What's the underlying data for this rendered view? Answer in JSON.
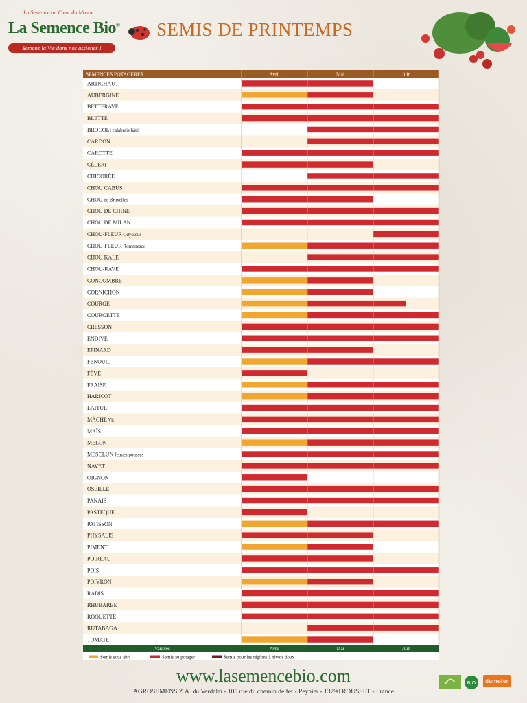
{
  "brand": {
    "tagline": "La Semence au Cœur du Monde",
    "name": "La Semence Bio",
    "registered": "®",
    "slogan": "Semons la Vie dans nos assiettes !"
  },
  "title": "SEMIS DE PRINTEMPS",
  "footer": {
    "url": "www.lasemencebio.com",
    "address": "AGROSEMENS Z.A. du Verdalaï - 105 rue du chemin de fer - Peynier - 13790 ROUSSET - France",
    "cert_labels": [
      "",
      "BIO",
      "demeter"
    ]
  },
  "colors": {
    "brand_green": "#2a6a2f",
    "header_brown": "#9a5a24",
    "footer_green": "#1f5d2b",
    "abri": "#f0a630",
    "potager": "#cf2a30",
    "hivers_doux": "#7e1a1f",
    "row_light": "#fbf1de",
    "row_white": "#ffffff"
  },
  "chart_data": {
    "type": "gantt",
    "title": "SEMIS DE PRINTEMPS",
    "header_label": "SEMENCES POTAGERES",
    "footer_label": "Variétés",
    "months": [
      "Avril",
      "Mai",
      "Juin"
    ],
    "legend": [
      {
        "key": "abri",
        "label": "Semis sous abri",
        "color": "#f0a630"
      },
      {
        "key": "potager",
        "label": "Semis au potager",
        "color": "#cf2a30"
      },
      {
        "key": "hivers_doux",
        "label": "Semis pour les régions à hivers doux",
        "color": "#7e1a1f"
      }
    ],
    "x_units": "months (0 = début avril, 3 = fin juin)",
    "rows": [
      {
        "name": "ARTICHAUT",
        "bars": [
          {
            "type": "potager",
            "start": 0,
            "end": 2
          }
        ]
      },
      {
        "name": "AUBERGINE",
        "bars": [
          {
            "type": "abri",
            "start": 0,
            "end": 1
          },
          {
            "type": "potager",
            "start": 1,
            "end": 2
          }
        ]
      },
      {
        "name": "BETTERAVE",
        "bars": [
          {
            "type": "potager",
            "start": 0,
            "end": 3
          }
        ]
      },
      {
        "name": "BLETTE",
        "bars": [
          {
            "type": "potager",
            "start": 0,
            "end": 3
          }
        ]
      },
      {
        "name": "BROCOLI",
        "note": "calabrais hâtif",
        "bars": [
          {
            "type": "potager",
            "start": 1,
            "end": 3
          }
        ]
      },
      {
        "name": "CARDON",
        "bars": [
          {
            "type": "potager",
            "start": 1,
            "end": 3
          }
        ]
      },
      {
        "name": "CAROTTE",
        "bars": [
          {
            "type": "potager",
            "start": 0,
            "end": 3
          }
        ]
      },
      {
        "name": "CÉLERI",
        "bars": [
          {
            "type": "potager",
            "start": 0,
            "end": 2
          }
        ]
      },
      {
        "name": "CHICORÉE",
        "bars": [
          {
            "type": "potager",
            "start": 1,
            "end": 3
          }
        ]
      },
      {
        "name": "CHOU CABUS",
        "bars": [
          {
            "type": "potager",
            "start": 0,
            "end": 3
          }
        ]
      },
      {
        "name": "CHOU",
        "note": "de Bruxelles",
        "bars": [
          {
            "type": "potager",
            "start": 0,
            "end": 2
          }
        ]
      },
      {
        "name": "CHOU DE CHINE",
        "bars": [
          {
            "type": "potager",
            "start": 0,
            "end": 3
          }
        ]
      },
      {
        "name": "CHOU DE MILAN",
        "bars": [
          {
            "type": "potager",
            "start": 0,
            "end": 3
          }
        ]
      },
      {
        "name": "CHOU-FLEUR",
        "note": "Odysseus",
        "bars": [
          {
            "type": "potager",
            "start": 2,
            "end": 3
          }
        ]
      },
      {
        "name": "CHOU-FLEUR",
        "note": "Romanesco",
        "bars": [
          {
            "type": "abri",
            "start": 0,
            "end": 1
          },
          {
            "type": "potager",
            "start": 1,
            "end": 3
          }
        ]
      },
      {
        "name": "CHOU KALE",
        "bars": [
          {
            "type": "potager",
            "start": 1,
            "end": 3
          }
        ]
      },
      {
        "name": "CHOU-RAVE",
        "bars": [
          {
            "type": "potager",
            "start": 0,
            "end": 3
          }
        ]
      },
      {
        "name": "CONCOMBRE",
        "bars": [
          {
            "type": "abri",
            "start": 0,
            "end": 1
          },
          {
            "type": "potager",
            "start": 1,
            "end": 2
          }
        ]
      },
      {
        "name": "CORNICHON",
        "bars": [
          {
            "type": "abri",
            "start": 0,
            "end": 1
          },
          {
            "type": "potager",
            "start": 1,
            "end": 2
          }
        ]
      },
      {
        "name": "COURGE",
        "bars": [
          {
            "type": "abri",
            "start": 0,
            "end": 1
          },
          {
            "type": "potager",
            "start": 1,
            "end": 2.5
          }
        ]
      },
      {
        "name": "COURGETTE",
        "bars": [
          {
            "type": "abri",
            "start": 0,
            "end": 1
          },
          {
            "type": "potager",
            "start": 1,
            "end": 3
          }
        ]
      },
      {
        "name": "CRESSON",
        "bars": [
          {
            "type": "potager",
            "start": 0,
            "end": 3
          }
        ]
      },
      {
        "name": "ENDIVE",
        "bars": [
          {
            "type": "potager",
            "start": 0,
            "end": 3
          }
        ]
      },
      {
        "name": "EPINARD",
        "bars": [
          {
            "type": "potager",
            "start": 0,
            "end": 2
          }
        ]
      },
      {
        "name": "FENOUIL",
        "bars": [
          {
            "type": "abri",
            "start": 0,
            "end": 1
          },
          {
            "type": "potager",
            "start": 1,
            "end": 3
          }
        ]
      },
      {
        "name": "FÈVE",
        "bars": [
          {
            "type": "potager",
            "start": 0,
            "end": 1
          }
        ]
      },
      {
        "name": "FRAISE",
        "bars": [
          {
            "type": "abri",
            "start": 0,
            "end": 1
          },
          {
            "type": "potager",
            "start": 1,
            "end": 3
          }
        ]
      },
      {
        "name": "HARICOT",
        "bars": [
          {
            "type": "abri",
            "start": 0,
            "end": 1
          },
          {
            "type": "potager",
            "start": 1,
            "end": 3
          }
        ]
      },
      {
        "name": "LAITUE",
        "bars": [
          {
            "type": "potager",
            "start": 0,
            "end": 3
          }
        ]
      },
      {
        "name": "MÂCHE",
        "note": "Vit",
        "bars": [
          {
            "type": "potager",
            "start": 0,
            "end": 3
          }
        ]
      },
      {
        "name": "MAÏS",
        "bars": [
          {
            "type": "potager",
            "start": 0,
            "end": 3
          }
        ]
      },
      {
        "name": "MELON",
        "bars": [
          {
            "type": "abri",
            "start": 0,
            "end": 1
          },
          {
            "type": "potager",
            "start": 1,
            "end": 3
          }
        ]
      },
      {
        "name": "MESCLUN",
        "note": "Jeunes pousses",
        "bars": [
          {
            "type": "potager",
            "start": 0,
            "end": 3
          }
        ]
      },
      {
        "name": "NAVET",
        "bars": [
          {
            "type": "potager",
            "start": 0,
            "end": 3
          }
        ]
      },
      {
        "name": "OIGNON",
        "bars": [
          {
            "type": "potager",
            "start": 0,
            "end": 1
          }
        ]
      },
      {
        "name": "OSEILLE",
        "bars": [
          {
            "type": "potager",
            "start": 0,
            "end": 3
          }
        ]
      },
      {
        "name": "PANAIS",
        "bars": [
          {
            "type": "potager",
            "start": 0,
            "end": 3
          }
        ]
      },
      {
        "name": "PASTEQUE",
        "bars": [
          {
            "type": "potager",
            "start": 0,
            "end": 1
          }
        ]
      },
      {
        "name": "PATISSON",
        "bars": [
          {
            "type": "abri",
            "start": 0,
            "end": 1
          },
          {
            "type": "potager",
            "start": 1,
            "end": 3
          }
        ]
      },
      {
        "name": "PHYSALIS",
        "bars": [
          {
            "type": "potager",
            "start": 0,
            "end": 2
          }
        ]
      },
      {
        "name": "PIMENT",
        "bars": [
          {
            "type": "abri",
            "start": 0,
            "end": 1
          },
          {
            "type": "potager",
            "start": 1,
            "end": 2
          }
        ]
      },
      {
        "name": "POIREAU",
        "bars": [
          {
            "type": "potager",
            "start": 0,
            "end": 2
          }
        ]
      },
      {
        "name": "POIS",
        "bars": [
          {
            "type": "potager",
            "start": 0,
            "end": 3
          }
        ]
      },
      {
        "name": "POIVRON",
        "bars": [
          {
            "type": "abri",
            "start": 0,
            "end": 1
          },
          {
            "type": "potager",
            "start": 1,
            "end": 2
          }
        ]
      },
      {
        "name": "RADIS",
        "bars": [
          {
            "type": "potager",
            "start": 0,
            "end": 3
          }
        ]
      },
      {
        "name": "RHUBARBE",
        "bars": [
          {
            "type": "potager",
            "start": 0,
            "end": 3
          }
        ]
      },
      {
        "name": "ROQUETTE",
        "bars": [
          {
            "type": "potager",
            "start": 0,
            "end": 3
          }
        ]
      },
      {
        "name": "RUTABAGA",
        "bars": [
          {
            "type": "potager",
            "start": 1,
            "end": 3
          }
        ]
      },
      {
        "name": "TOMATE",
        "bars": [
          {
            "type": "abri",
            "start": 0,
            "end": 1
          },
          {
            "type": "potager",
            "start": 1,
            "end": 2
          }
        ]
      }
    ]
  }
}
